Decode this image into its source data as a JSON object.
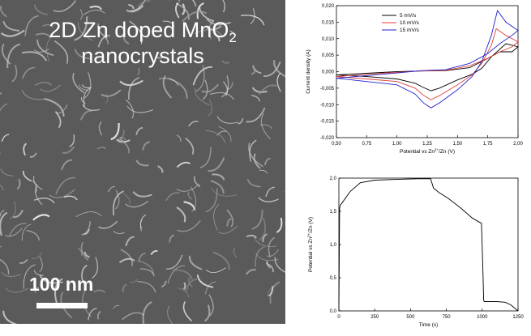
{
  "micrograph": {
    "title_main": "2D Zn doped MnO",
    "title_sub": "2",
    "title_line2": "nanocrystals",
    "scale_bar_label": "100 nm"
  },
  "chart_data": [
    {
      "type": "line",
      "xlabel": "Potential vs Zn",
      "xlabel_sup": "2+",
      "xlabel_tail": "/Zn (V)",
      "ylabel": "Current density (A)",
      "xlim": [
        0.5,
        2.0
      ],
      "ylim": [
        -0.02,
        0.02
      ],
      "x_ticks": [
        "0,50",
        "0,75",
        "1,00",
        "1,25",
        "1,50",
        "1,75",
        "2,00"
      ],
      "y_ticks": [
        "-0,020",
        "-0,015",
        "-0,010",
        "-0,005",
        "0,000",
        "0,005",
        "0,010",
        "0,015",
        "0,020"
      ],
      "legend_position": "top-left",
      "series": [
        {
          "name": "5 mV/s",
          "color": "#000000",
          "x": [
            0.5,
            0.75,
            1.0,
            1.15,
            1.22,
            1.28,
            1.35,
            1.5,
            1.62,
            1.7,
            1.78,
            1.9,
            2.0,
            1.95,
            1.85,
            1.75,
            1.6,
            1.4,
            1.2,
            1.0,
            0.75,
            0.5
          ],
          "y": [
            -0.001,
            -0.0015,
            -0.0022,
            -0.0035,
            -0.0048,
            -0.0058,
            -0.005,
            -0.0025,
            -0.0008,
            0.001,
            0.0045,
            0.0085,
            0.0075,
            0.006,
            0.006,
            0.004,
            0.0012,
            0.0003,
            0.0002,
            0.0,
            -0.0005,
            -0.001
          ]
        },
        {
          "name": "10 mV/s",
          "color": "#e03c3c",
          "x": [
            0.5,
            0.75,
            1.0,
            1.15,
            1.22,
            1.28,
            1.35,
            1.5,
            1.62,
            1.7,
            1.78,
            1.82,
            1.9,
            2.0,
            1.95,
            1.85,
            1.75,
            1.6,
            1.4,
            1.2,
            1.0,
            0.75,
            0.5
          ],
          "y": [
            -0.0015,
            -0.0022,
            -0.003,
            -0.005,
            -0.0072,
            -0.0085,
            -0.0073,
            -0.004,
            -0.001,
            0.0025,
            0.008,
            0.013,
            0.011,
            0.009,
            0.0075,
            0.006,
            0.004,
            0.0018,
            0.0004,
            0.0002,
            -0.0002,
            -0.0008,
            -0.0015
          ]
        },
        {
          "name": "15 mV/s",
          "color": "#2222cc",
          "x": [
            0.5,
            0.75,
            1.0,
            1.15,
            1.22,
            1.28,
            1.35,
            1.5,
            1.62,
            1.7,
            1.78,
            1.83,
            1.9,
            2.0,
            1.95,
            1.85,
            1.75,
            1.6,
            1.4,
            1.2,
            1.0,
            0.75,
            0.5
          ],
          "y": [
            -0.002,
            -0.003,
            -0.004,
            -0.0068,
            -0.0095,
            -0.011,
            -0.0095,
            -0.0055,
            -0.0015,
            0.003,
            0.011,
            0.0185,
            0.015,
            0.0125,
            0.011,
            0.0085,
            0.0055,
            0.0025,
            0.0006,
            0.0003,
            -0.0004,
            -0.0012,
            -0.002
          ]
        }
      ]
    },
    {
      "type": "line",
      "xlabel": "Time (s)",
      "ylabel": "Potential vs Zn",
      "ylabel_sup": "2+",
      "ylabel_tail": "/Zn (V)",
      "xlim": [
        0,
        1250
      ],
      "ylim": [
        0.0,
        2.0
      ],
      "x_ticks": [
        "0",
        "250",
        "500",
        "750",
        "1000",
        "1250"
      ],
      "y_ticks": [
        "0,0",
        "0,5",
        "1,0",
        "1,5",
        "2,0"
      ],
      "series": [
        {
          "color": "#000000",
          "x": [
            0,
            5,
            12,
            20,
            40,
            80,
            150,
            250,
            400,
            550,
            640,
            660,
            700,
            760,
            850,
            930,
            970,
            995,
            1005,
            1010,
            1015,
            1050,
            1100,
            1160,
            1200,
            1250
          ],
          "y": [
            0.0,
            1.55,
            1.6,
            1.62,
            1.68,
            1.8,
            1.93,
            1.97,
            1.98,
            1.99,
            1.99,
            1.85,
            1.78,
            1.7,
            1.55,
            1.4,
            1.35,
            1.32,
            0.6,
            0.16,
            0.14,
            0.14,
            0.14,
            0.13,
            0.09,
            0.0
          ]
        }
      ]
    }
  ]
}
